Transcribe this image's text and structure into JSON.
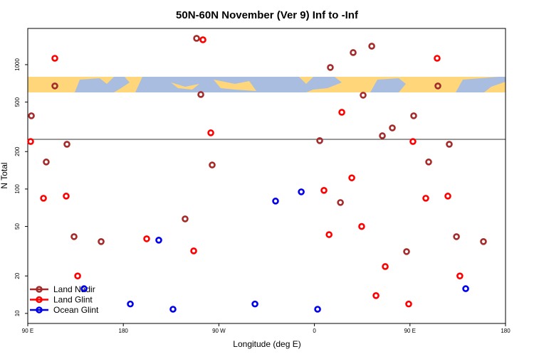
{
  "chart_data": {
    "type": "scatter",
    "title": "50N-60N November (Ver 9)   Inf to -Inf",
    "x_label": "Longitude (deg E)",
    "y_label": "N Total",
    "xlim": [
      90,
      540
    ],
    "xticks": [
      {
        "value": 90,
        "label": "90 E"
      },
      {
        "value": 180,
        "label": "180"
      },
      {
        "value": 270,
        "label": "90 W"
      },
      {
        "value": 360,
        "label": "0"
      },
      {
        "value": 450,
        "label": "90 E"
      },
      {
        "value": 540,
        "label": "180"
      }
    ],
    "ylim": [
      8.3,
      1955
    ],
    "yticks": [
      10,
      20,
      50,
      100,
      200,
      500,
      1000
    ],
    "log_y": true,
    "legend": "bottom-left",
    "series": [
      {
        "name": "Land Nadir",
        "color": "#a52a2a",
        "x": [
          93.4,
          115.5,
          107.4,
          126.9,
          133.6,
          159.1,
          238.2,
          249,
          253,
          263.7,
          365,
          375,
          384.5,
          396.5,
          405.9,
          414,
          424,
          433.4,
          446.8,
          453.5,
          467.6,
          476.3,
          487,
          493.8,
          519.2
        ],
        "values": [
          388,
          674,
          165,
          229,
          41.4,
          37.8,
          57.5,
          1627,
          575,
          156,
          245,
          949,
          77.9,
          1250,
          568,
          1408,
          268,
          310,
          31.4,
          388,
          165,
          674,
          229,
          41.4,
          37.8
        ]
      },
      {
        "name": "Land Glint",
        "color": "#ff0000",
        "x": [
          92.7,
          115.5,
          104.8,
          126.2,
          137,
          202,
          246.3,
          255,
          262.4,
          369,
          373.8,
          385.8,
          395.2,
          404.5,
          418,
          426.7,
          448.8,
          452.8,
          464.9,
          475.6,
          485.7,
          497
        ],
        "values": [
          241,
          1125,
          84.3,
          87.7,
          20,
          39.8,
          31.8,
          1585,
          283,
          97.5,
          43,
          414,
          123,
          50,
          13.9,
          23.8,
          11.9,
          241,
          84.3,
          1125,
          87.7,
          20
        ]
      },
      {
        "name": "Ocean Glint",
        "color": "#0000ee",
        "x": [
          143,
          186.6,
          213.4,
          226.8,
          304,
          323.4,
          347.6,
          363,
          502.5
        ],
        "values": [
          15.8,
          11.9,
          38.8,
          10.8,
          11.9,
          80,
          94.9,
          10.8,
          15.8
        ]
      }
    ]
  }
}
